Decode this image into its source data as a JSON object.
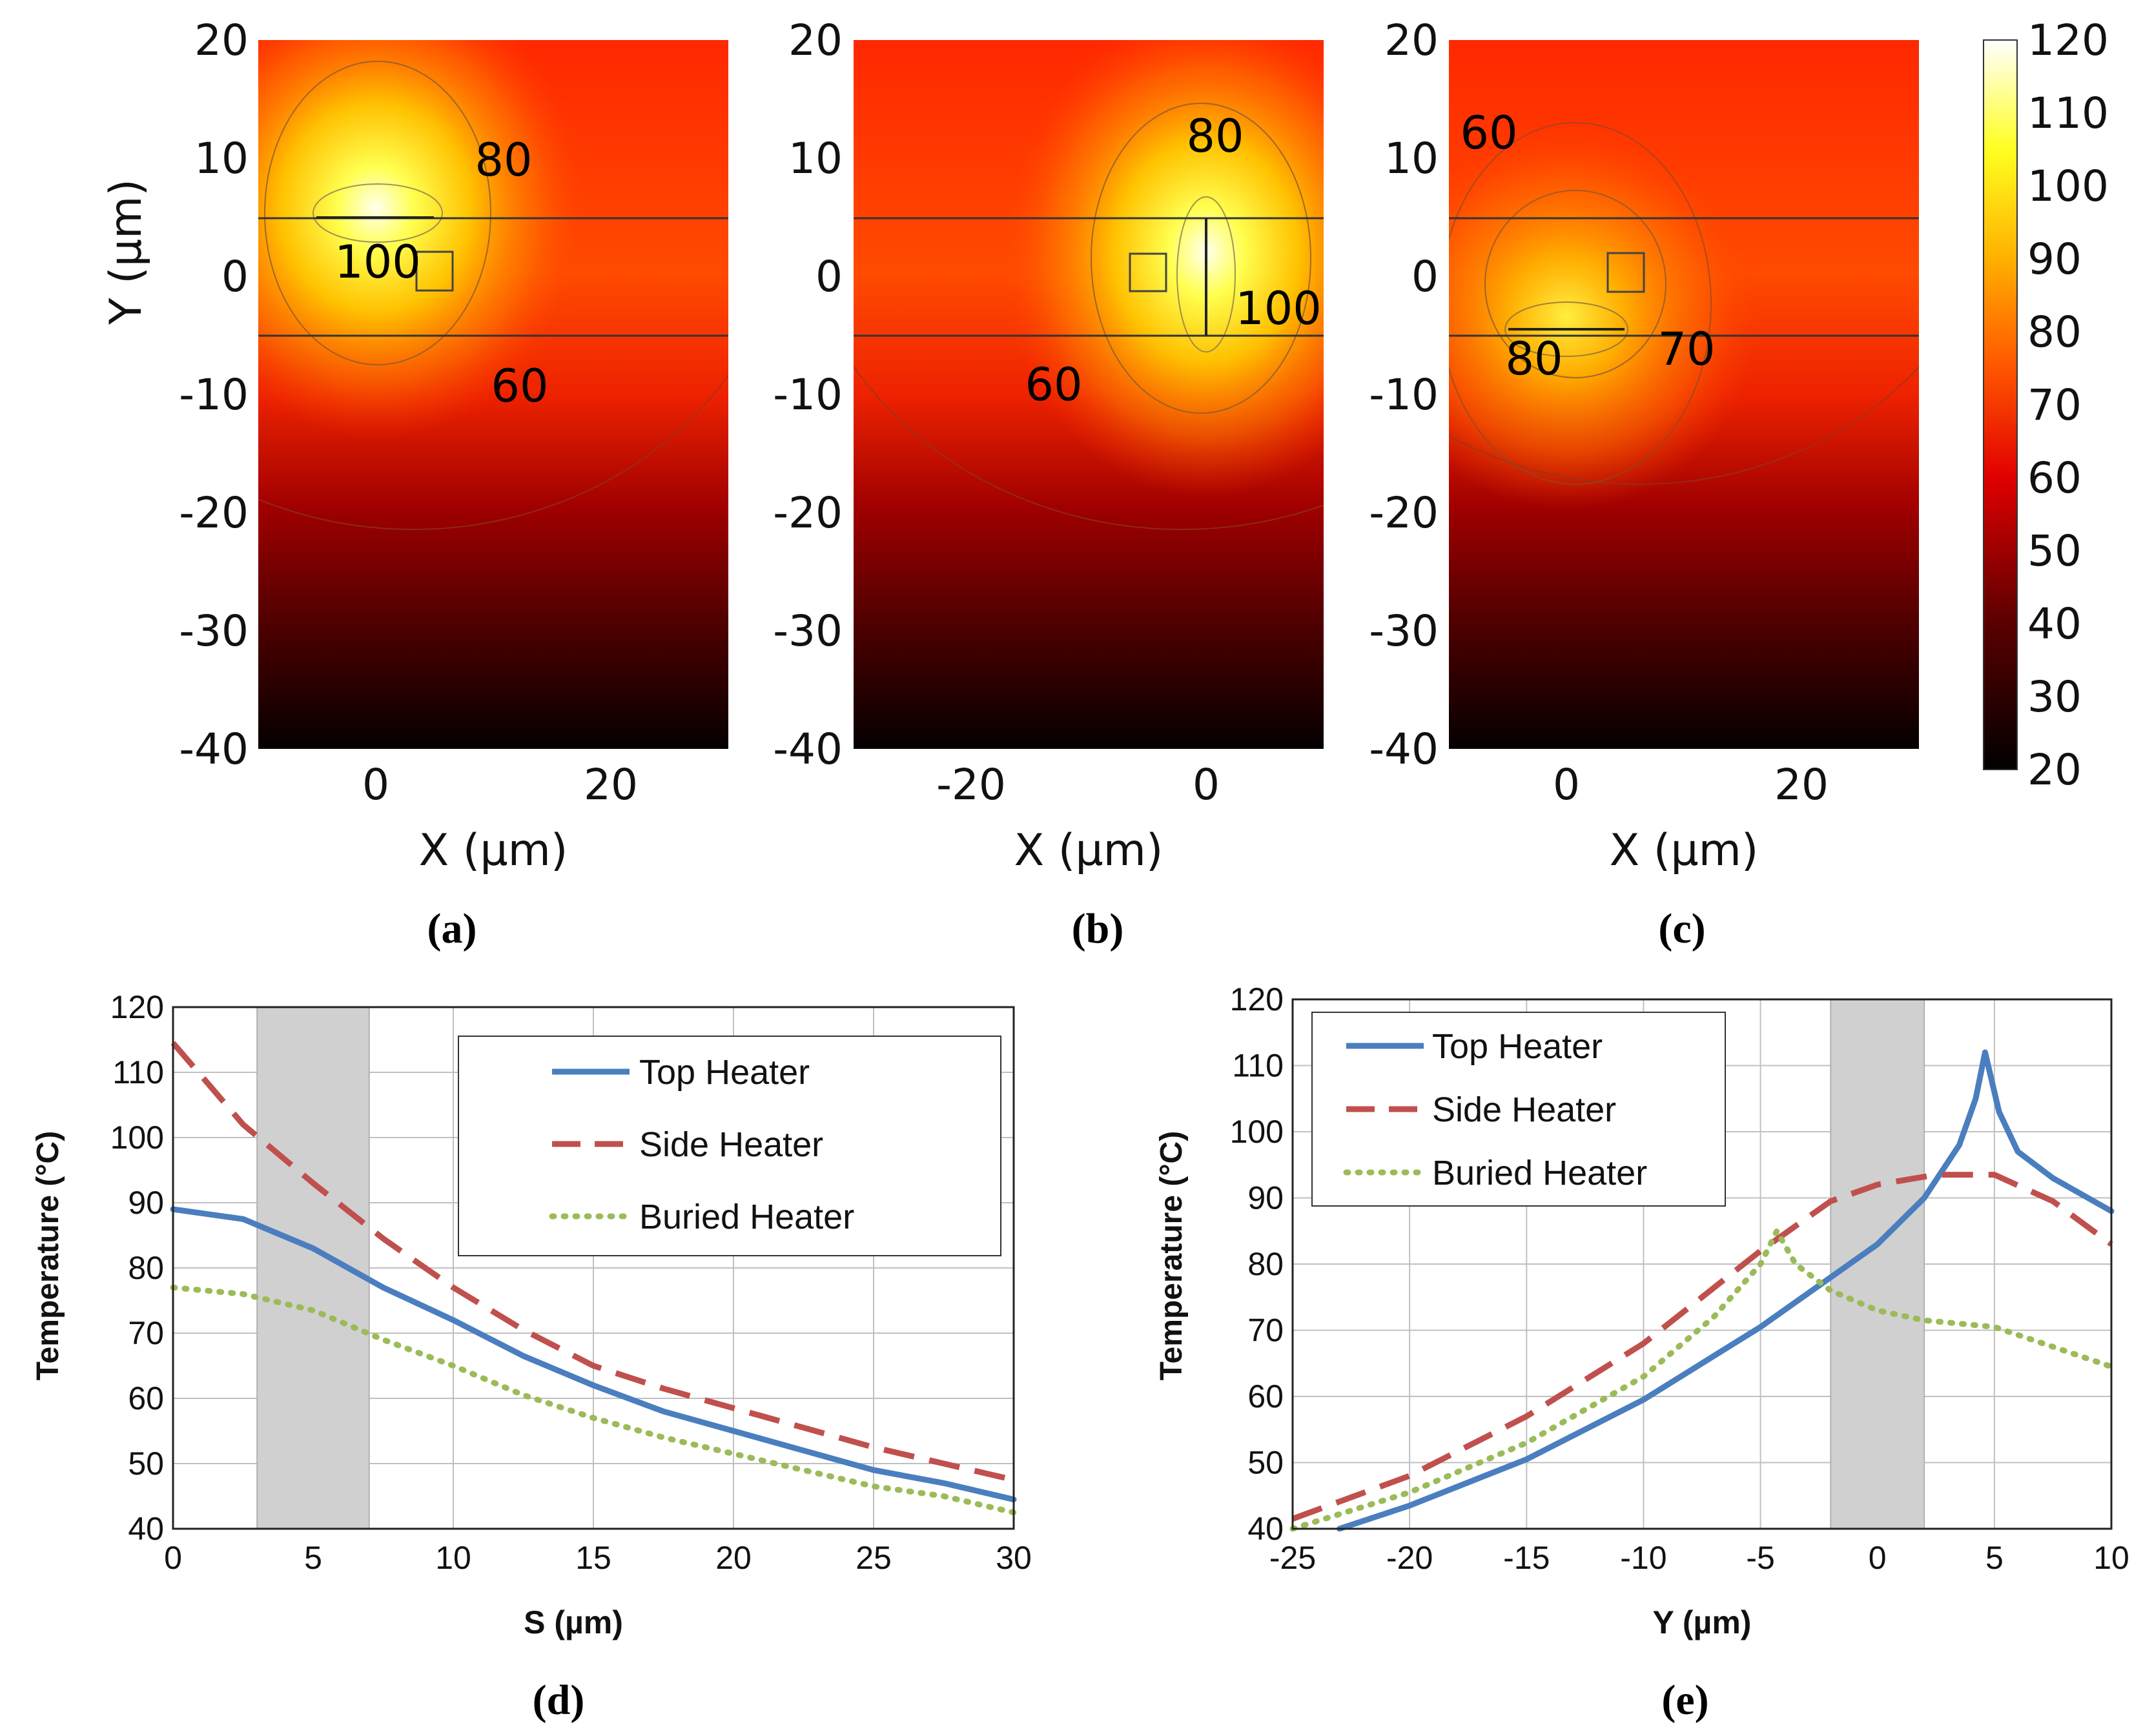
{
  "colors": {
    "top_heater": "#4a7ebf",
    "side_heater": "#c0504d",
    "buried_heater": "#9bbb59",
    "gray_band": "#d0d0d0",
    "gridline": "#c0c0c0"
  },
  "chart_data": [
    {
      "id": "a",
      "type": "heatmap",
      "panel_label": "(a)",
      "xlabel": "X (µm)",
      "ylabel": "Y (µm)",
      "xlim": [
        -10,
        30
      ],
      "ylim": [
        -40,
        20
      ],
      "xticks": [
        "0",
        "20"
      ],
      "yticks": [
        "20",
        "10",
        "0",
        "-10",
        "-20",
        "-30",
        "-40"
      ],
      "heater": {
        "orientation": "horizontal",
        "x": 0,
        "y": 4.6
      },
      "hotspot": {
        "x": 0,
        "y": 5.0
      },
      "contour_labels": [
        {
          "text": "80",
          "x": 11,
          "y": 9.4
        },
        {
          "text": "100",
          "x": 0,
          "y": 1.0
        },
        {
          "text": "60",
          "x": 12,
          "y": -9.6
        }
      ]
    },
    {
      "id": "b",
      "type": "heatmap",
      "panel_label": "(b)",
      "xlabel": "X (µm)",
      "ylabel": "",
      "xlim": [
        -30,
        10
      ],
      "ylim": [
        -40,
        20
      ],
      "xticks": [
        "-20",
        "0"
      ],
      "yticks": [
        "20",
        "10",
        "0",
        "-10",
        "-20",
        "-30",
        "-40"
      ],
      "heater": {
        "orientation": "vertical",
        "x": 0,
        "y": 0
      },
      "hotspot": {
        "x": -1,
        "y": 1.0
      },
      "contour_labels": [
        {
          "text": "80",
          "x": 0.8,
          "y": 11.4
        },
        {
          "text": "100",
          "x": 6,
          "y": -3.4
        },
        {
          "text": "60",
          "x": -13,
          "y": -9.4
        }
      ]
    },
    {
      "id": "c",
      "type": "heatmap",
      "panel_label": "(c)",
      "xlabel": "X (µm)",
      "ylabel": "",
      "xlim": [
        -10,
        30
      ],
      "ylim": [
        -40,
        20
      ],
      "xticks": [
        "0",
        "20"
      ],
      "yticks": [
        "20",
        "10",
        "0",
        "-10",
        "-20",
        "-30",
        "-40"
      ],
      "heater": {
        "orientation": "horizontal",
        "x": 0,
        "y": -4.8
      },
      "hotspot": {
        "x": 0,
        "y": -4.0
      },
      "contour_labels": [
        {
          "text": "60",
          "x": -6.5,
          "y": 11.4
        },
        {
          "text": "80",
          "x": -3.4,
          "y": -6.8
        },
        {
          "text": "70",
          "x": 10.2,
          "y": -6.1
        }
      ]
    },
    {
      "id": "colorbar",
      "type": "colorbar",
      "range": [
        20,
        120
      ],
      "ticks": [
        "120",
        "110",
        "100",
        "90",
        "80",
        "70",
        "60",
        "50",
        "40",
        "30",
        "20"
      ]
    },
    {
      "id": "d",
      "type": "line",
      "panel_label": "(d)",
      "xlabel": "S (µm)",
      "ylabel": "Temperature (°C)",
      "xlim": [
        0,
        30
      ],
      "ylim": [
        40,
        120
      ],
      "xticks": [
        "0",
        "5",
        "10",
        "15",
        "20",
        "25",
        "30"
      ],
      "yticks": [
        "120",
        "110",
        "100",
        "90",
        "80",
        "70",
        "60",
        "50",
        "40"
      ],
      "shaded_region": [
        3,
        7
      ],
      "x": [
        0,
        2.5,
        5,
        7.5,
        10,
        12.5,
        15,
        17.5,
        20,
        22.5,
        25,
        27.5,
        30
      ],
      "series": [
        {
          "name": "Top Heater",
          "values": [
            89,
            87.5,
            83,
            77,
            72,
            66.5,
            62,
            58,
            55,
            52,
            49,
            47,
            44.5
          ]
        },
        {
          "name": "Side Heater",
          "values": [
            114.5,
            102,
            93,
            84.5,
            77,
            70.5,
            65,
            61.5,
            58.5,
            55.5,
            52.5,
            50,
            47.5
          ]
        },
        {
          "name": "Buried Heater",
          "values": [
            77,
            76,
            73.5,
            69,
            65,
            60.5,
            57,
            54,
            51.5,
            49,
            46.5,
            45,
            42.5
          ]
        }
      ],
      "legend": {
        "position": "top-right",
        "entries": [
          "Top Heater",
          "Side Heater",
          "Buried Heater"
        ]
      }
    },
    {
      "id": "e",
      "type": "line",
      "panel_label": "(e)",
      "xlabel": "Y (µm)",
      "ylabel": "Temperature (°C)",
      "xlim": [
        -25,
        10
      ],
      "ylim": [
        40,
        120
      ],
      "xticks": [
        "-25",
        "-20",
        "-15",
        "-10",
        "-5",
        "0",
        "5",
        "10"
      ],
      "yticks": [
        "120",
        "110",
        "100",
        "90",
        "80",
        "70",
        "60",
        "50",
        "40"
      ],
      "shaded_region": [
        -2,
        2
      ],
      "series": [
        {
          "name": "Top Heater",
          "x": [
            -23,
            -20,
            -15,
            -10,
            -5,
            -2,
            0,
            2,
            3.5,
            4.2,
            4.6,
            5.2,
            6,
            7.5,
            10
          ],
          "values": [
            40,
            43.5,
            50.5,
            59.5,
            70.5,
            78,
            83,
            90,
            98,
            105,
            112,
            103,
            97,
            93,
            88
          ]
        },
        {
          "name": "Side Heater",
          "x": [
            -25,
            -20,
            -15,
            -10,
            -5,
            -2,
            0,
            2.5,
            5,
            7.5,
            10
          ],
          "values": [
            41.5,
            48,
            57,
            68,
            82,
            89.5,
            92,
            93.5,
            93.5,
            89.5,
            83
          ]
        },
        {
          "name": "Buried Heater",
          "x": [
            -25,
            -20,
            -15,
            -10,
            -7,
            -5,
            -4.3,
            -3.5,
            -2,
            0,
            2,
            5,
            7.5,
            10
          ],
          "values": [
            40,
            45.5,
            53,
            63,
            72,
            80,
            85,
            80,
            76,
            73,
            71.5,
            70.5,
            67.5,
            64.5
          ]
        }
      ],
      "legend": {
        "position": "top-left",
        "entries": [
          "Top Heater",
          "Side Heater",
          "Buried Heater"
        ]
      }
    }
  ]
}
